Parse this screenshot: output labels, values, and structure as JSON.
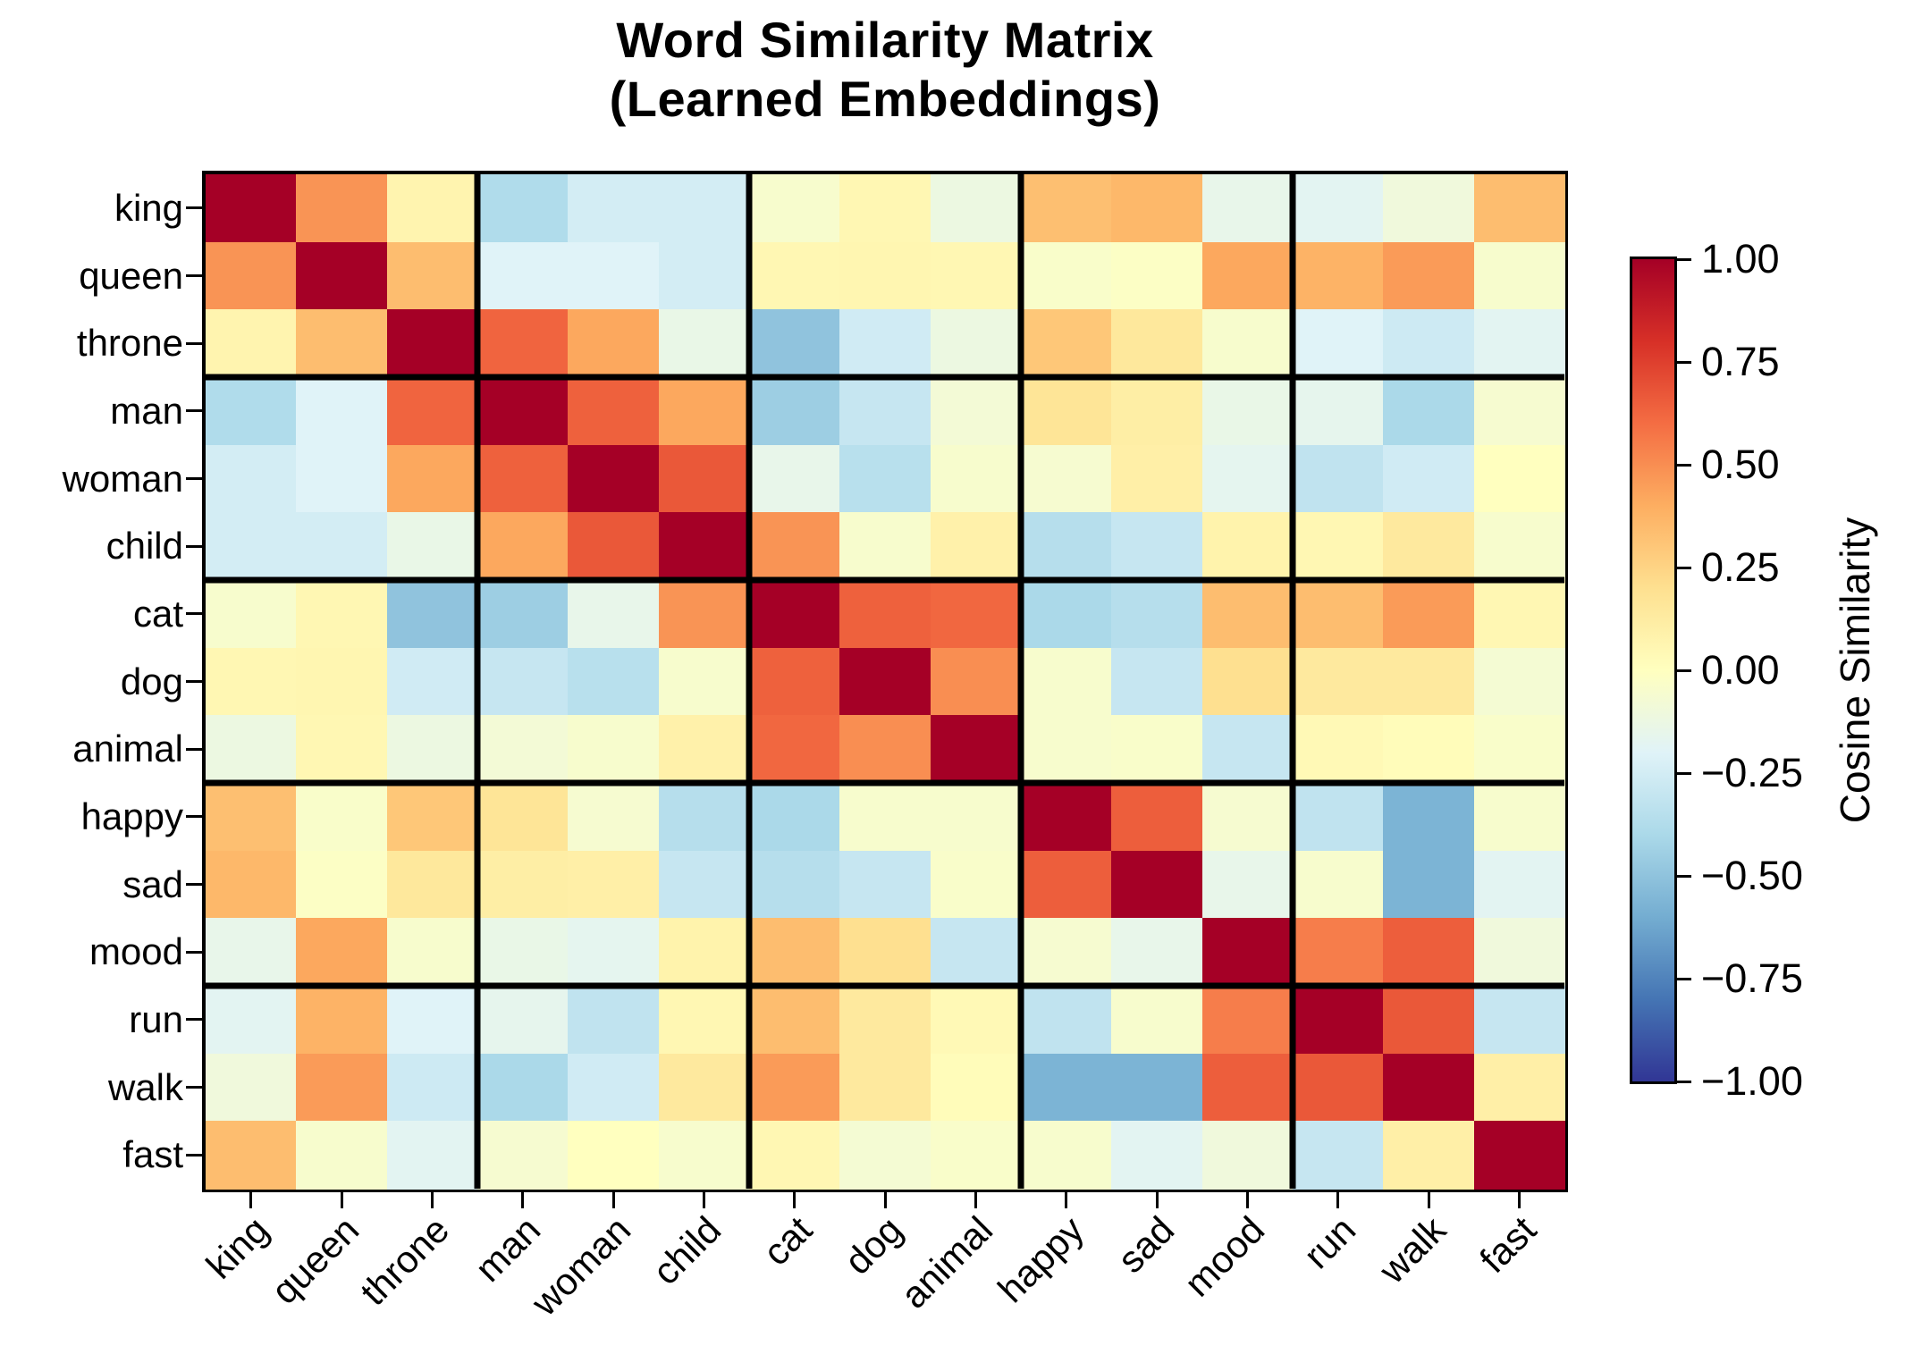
{
  "figure": {
    "title_line1": "Word Similarity Matrix",
    "title_line2": "(Learned Embeddings)"
  },
  "chart_data": {
    "type": "heatmap",
    "title": "Word Similarity Matrix (Learned Embeddings)",
    "xlabel": "",
    "ylabel": "",
    "words": [
      "king",
      "queen",
      "throne",
      "man",
      "woman",
      "child",
      "cat",
      "dog",
      "animal",
      "happy",
      "sad",
      "mood",
      "run",
      "walk",
      "fast"
    ],
    "group_size": 3,
    "value_range": [
      -1,
      1
    ],
    "matrix": [
      [
        1.0,
        0.48,
        0.07,
        -0.38,
        -0.25,
        -0.25,
        -0.05,
        0.05,
        -0.12,
        0.33,
        0.36,
        -0.15,
        -0.18,
        -0.1,
        0.34
      ],
      [
        0.48,
        1.0,
        0.34,
        -0.2,
        -0.2,
        -0.25,
        0.05,
        0.06,
        0.05,
        -0.04,
        -0.02,
        0.42,
        0.38,
        0.46,
        -0.05
      ],
      [
        0.07,
        0.34,
        1.0,
        0.63,
        0.42,
        -0.14,
        -0.5,
        -0.26,
        -0.12,
        0.3,
        0.15,
        -0.05,
        -0.2,
        -0.27,
        -0.18
      ],
      [
        -0.38,
        -0.2,
        0.63,
        1.0,
        0.64,
        0.42,
        -0.45,
        -0.3,
        -0.08,
        0.17,
        0.11,
        -0.14,
        -0.16,
        -0.4,
        -0.06
      ],
      [
        -0.25,
        -0.2,
        0.42,
        0.64,
        1.0,
        0.67,
        -0.15,
        -0.35,
        -0.05,
        -0.06,
        0.1,
        -0.17,
        -0.32,
        -0.26,
        0.0
      ],
      [
        -0.25,
        -0.25,
        -0.14,
        0.42,
        0.67,
        1.0,
        0.48,
        -0.05,
        0.09,
        -0.36,
        -0.3,
        0.08,
        0.05,
        0.14,
        -0.05
      ],
      [
        -0.05,
        0.05,
        -0.5,
        -0.45,
        -0.15,
        0.48,
        1.0,
        0.64,
        0.62,
        -0.4,
        -0.36,
        0.34,
        0.34,
        0.46,
        0.05
      ],
      [
        0.05,
        0.06,
        -0.26,
        -0.3,
        -0.35,
        -0.05,
        0.64,
        1.0,
        0.5,
        -0.05,
        -0.3,
        0.2,
        0.14,
        0.14,
        -0.07
      ],
      [
        -0.12,
        0.05,
        -0.12,
        -0.08,
        -0.05,
        0.09,
        0.62,
        0.5,
        1.0,
        -0.05,
        -0.04,
        -0.3,
        0.04,
        0.02,
        -0.04
      ],
      [
        0.33,
        -0.04,
        0.3,
        0.17,
        -0.06,
        -0.36,
        -0.4,
        -0.05,
        -0.05,
        1.0,
        0.65,
        -0.06,
        -0.32,
        -0.57,
        -0.05
      ],
      [
        0.36,
        -0.02,
        0.15,
        0.11,
        0.1,
        -0.3,
        -0.36,
        -0.3,
        -0.04,
        0.65,
        1.0,
        -0.15,
        -0.05,
        -0.57,
        -0.18
      ],
      [
        -0.15,
        0.42,
        -0.05,
        -0.14,
        -0.17,
        0.08,
        0.34,
        0.2,
        -0.3,
        -0.06,
        -0.15,
        1.0,
        0.55,
        0.65,
        -0.1
      ],
      [
        -0.18,
        0.38,
        -0.2,
        -0.16,
        -0.32,
        0.05,
        0.34,
        0.14,
        0.04,
        -0.32,
        -0.05,
        0.55,
        1.0,
        0.67,
        -0.3
      ],
      [
        -0.1,
        0.46,
        -0.27,
        -0.4,
        -0.26,
        0.14,
        0.46,
        0.14,
        0.02,
        -0.57,
        -0.57,
        0.65,
        0.67,
        1.0,
        0.1
      ],
      [
        0.34,
        -0.05,
        -0.18,
        -0.06,
        0.0,
        -0.05,
        0.05,
        -0.07,
        -0.04,
        -0.05,
        -0.18,
        -0.1,
        -0.3,
        0.1,
        1.0
      ]
    ],
    "colormap": {
      "name": "RdYlBu_r",
      "anchors": [
        {
          "t": 0.0,
          "color": "#313695"
        },
        {
          "t": 0.1,
          "color": "#4575b4"
        },
        {
          "t": 0.2,
          "color": "#74add1"
        },
        {
          "t": 0.3,
          "color": "#abd9e9"
        },
        {
          "t": 0.4,
          "color": "#e0f3f8"
        },
        {
          "t": 0.5,
          "color": "#ffffbf"
        },
        {
          "t": 0.6,
          "color": "#fee090"
        },
        {
          "t": 0.7,
          "color": "#fdae61"
        },
        {
          "t": 0.8,
          "color": "#f46d43"
        },
        {
          "t": 0.9,
          "color": "#d73027"
        },
        {
          "t": 1.0,
          "color": "#a50026"
        }
      ]
    },
    "colorbar": {
      "label": "Cosine Similarity",
      "ticks": [
        {
          "label": "1.00",
          "value": 1.0
        },
        {
          "label": "0.75",
          "value": 0.75
        },
        {
          "label": "0.50",
          "value": 0.5
        },
        {
          "label": "0.25",
          "value": 0.25
        },
        {
          "label": "0.00",
          "value": 0.0
        },
        {
          "label": "−0.25",
          "value": -0.25
        },
        {
          "label": "−0.50",
          "value": -0.5
        },
        {
          "label": "−0.75",
          "value": -0.75
        },
        {
          "label": "−1.00",
          "value": -1.0
        }
      ]
    },
    "grid_lines_color": "#000000",
    "background_color": "#ffffff"
  }
}
